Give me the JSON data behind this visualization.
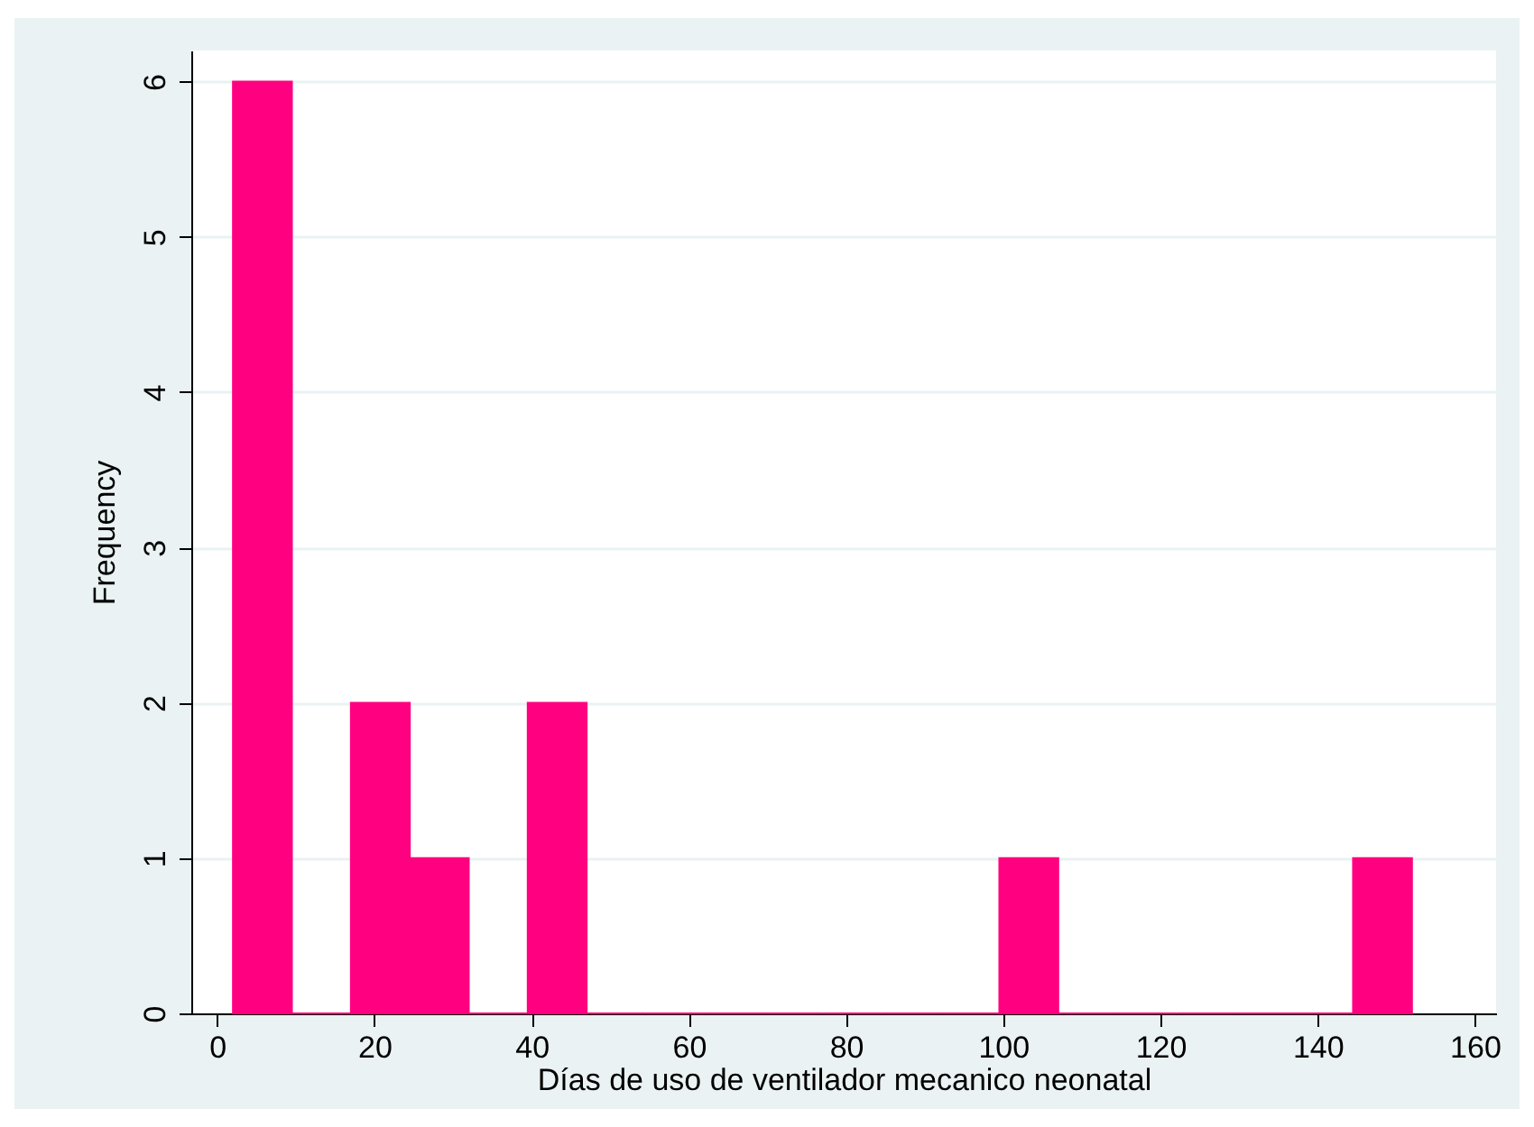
{
  "chart_data": {
    "type": "histogram",
    "xlabel": "Días de uso de ventilador mecanico neonatal",
    "ylabel": "Frequency",
    "bins": [
      2,
      9.5,
      17,
      24.5,
      32,
      39.5,
      47,
      54.5,
      62,
      69.5,
      77,
      84.5,
      92,
      99.5,
      107,
      114.5,
      122,
      129.5,
      137,
      144.5,
      152
    ],
    "values": [
      6,
      0,
      2,
      1,
      0,
      2,
      0,
      0,
      0,
      0,
      0,
      0,
      0,
      1,
      0,
      0,
      0,
      0,
      0,
      1
    ],
    "color": "#ff0080",
    "xlim": [
      -3.3,
      162.7
    ],
    "xticks": [
      0,
      20,
      40,
      60,
      80,
      100,
      120,
      140,
      160
    ],
    "ylim": [
      0,
      6.2
    ],
    "yticks": [
      0,
      1,
      2,
      3,
      4,
      5,
      6
    ],
    "grid": "y"
  }
}
